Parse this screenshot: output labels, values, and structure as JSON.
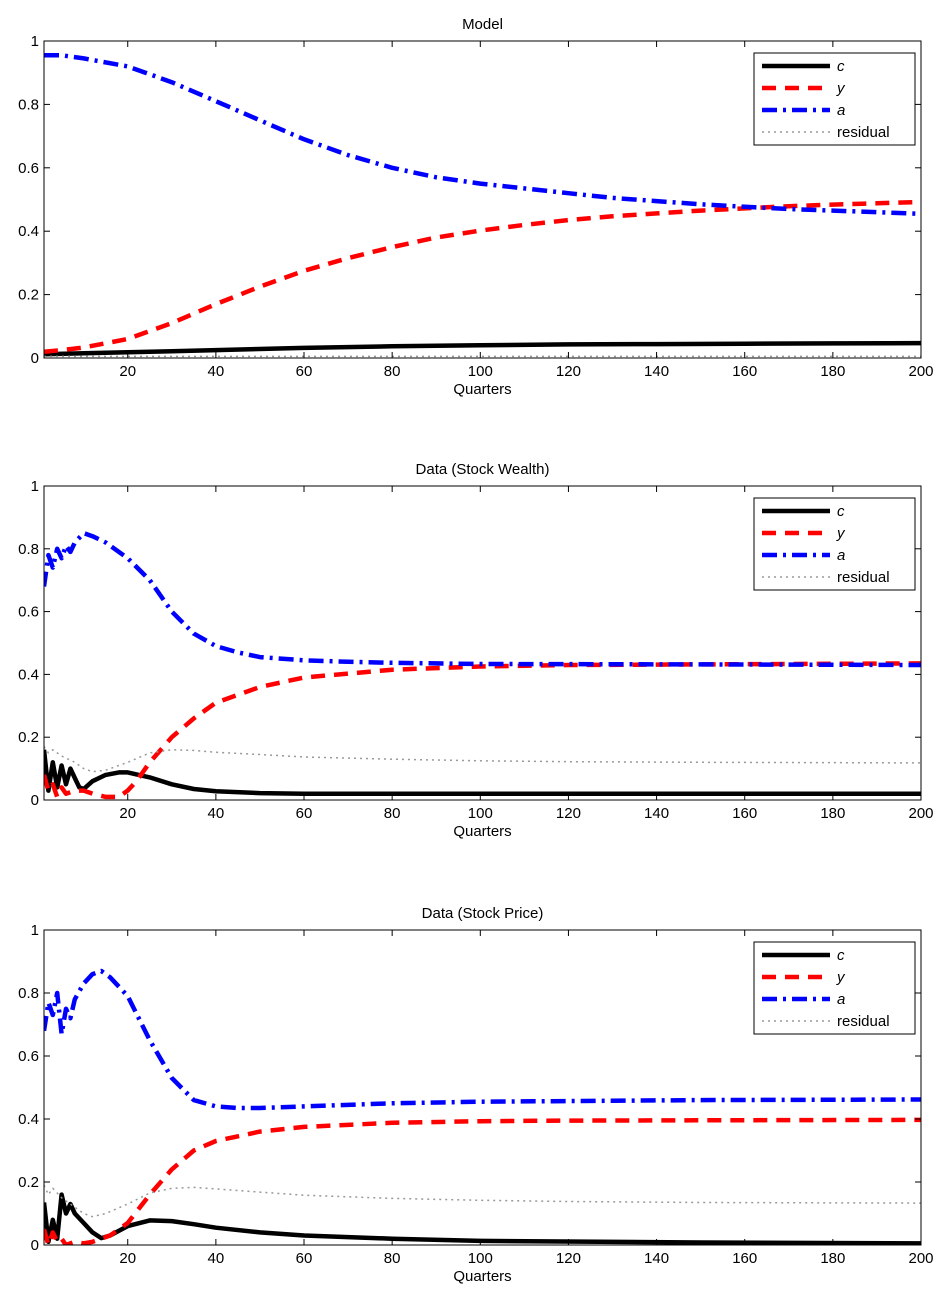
{
  "colors": {
    "c": "#000000",
    "y": "#ff0000",
    "a": "#0000ff",
    "residual": "#999999"
  },
  "chart_data": [
    {
      "type": "line",
      "title": "Model",
      "xlabel": "Quarters",
      "ylabel": "",
      "xlim": [
        1,
        200
      ],
      "ylim": [
        0,
        1
      ],
      "xticks": [
        20,
        40,
        60,
        80,
        100,
        120,
        140,
        160,
        180,
        200
      ],
      "yticks": [
        0,
        0.2,
        0.4,
        0.6,
        0.8,
        1
      ],
      "ytick_labels": [
        "0",
        "0.2",
        "0.4",
        "0.6",
        "0.8",
        "1"
      ],
      "legend": {
        "position": "top-right",
        "entries": [
          "c",
          "y",
          "a",
          "residual"
        ]
      },
      "series": [
        {
          "name": "c",
          "x": [
            1,
            10,
            20,
            30,
            40,
            60,
            80,
            100,
            120,
            140,
            160,
            180,
            200
          ],
          "values": [
            0.012,
            0.015,
            0.018,
            0.021,
            0.025,
            0.032,
            0.037,
            0.04,
            0.043,
            0.044,
            0.045,
            0.046,
            0.047
          ]
        },
        {
          "name": "y",
          "x": [
            1,
            5,
            10,
            20,
            30,
            40,
            50,
            60,
            70,
            80,
            90,
            100,
            110,
            120,
            130,
            140,
            150,
            160,
            170,
            180,
            190,
            200
          ],
          "values": [
            0.02,
            0.025,
            0.033,
            0.06,
            0.11,
            0.17,
            0.225,
            0.275,
            0.315,
            0.35,
            0.38,
            0.402,
            0.42,
            0.435,
            0.447,
            0.456,
            0.465,
            0.472,
            0.479,
            0.484,
            0.488,
            0.492
          ]
        },
        {
          "name": "a",
          "x": [
            1,
            5,
            10,
            20,
            30,
            40,
            50,
            60,
            70,
            80,
            90,
            100,
            110,
            120,
            130,
            140,
            150,
            160,
            170,
            180,
            190,
            200
          ],
          "values": [
            0.955,
            0.955,
            0.945,
            0.92,
            0.87,
            0.81,
            0.75,
            0.69,
            0.64,
            0.6,
            0.57,
            0.55,
            0.535,
            0.52,
            0.505,
            0.495,
            0.485,
            0.477,
            0.47,
            0.465,
            0.46,
            0.455
          ]
        },
        {
          "name": "residual",
          "x": [
            1,
            200
          ],
          "values": [
            0.005,
            0.005
          ]
        }
      ]
    },
    {
      "type": "line",
      "title": "Data (Stock Wealth)",
      "xlabel": "Quarters",
      "ylabel": "",
      "xlim": [
        1,
        200
      ],
      "ylim": [
        0,
        1
      ],
      "xticks": [
        20,
        40,
        60,
        80,
        100,
        120,
        140,
        160,
        180,
        200
      ],
      "yticks": [
        0,
        0.2,
        0.4,
        0.6,
        0.8,
        1
      ],
      "ytick_labels": [
        "0",
        "0.2",
        "0.4",
        "0.6",
        "0.8",
        "1"
      ],
      "legend": {
        "position": "top-right",
        "entries": [
          "c",
          "y",
          "a",
          "residual"
        ]
      },
      "series": [
        {
          "name": "c",
          "x": [
            1,
            2,
            3,
            4,
            5,
            6,
            7,
            8,
            9,
            10,
            12,
            15,
            18,
            20,
            25,
            30,
            35,
            40,
            50,
            60,
            80,
            100,
            150,
            200
          ],
          "values": [
            0.16,
            0.03,
            0.12,
            0.04,
            0.11,
            0.05,
            0.1,
            0.07,
            0.04,
            0.035,
            0.06,
            0.08,
            0.088,
            0.088,
            0.072,
            0.05,
            0.035,
            0.028,
            0.022,
            0.02,
            0.02,
            0.02,
            0.02,
            0.02
          ]
        },
        {
          "name": "y",
          "x": [
            1,
            2,
            3,
            4,
            5,
            6,
            8,
            10,
            12,
            15,
            18,
            20,
            22,
            25,
            30,
            35,
            40,
            50,
            60,
            80,
            100,
            120,
            150,
            200
          ],
          "values": [
            0.08,
            0.03,
            0.05,
            0.01,
            0.04,
            0.02,
            0.03,
            0.03,
            0.02,
            0.01,
            0.01,
            0.03,
            0.06,
            0.12,
            0.2,
            0.26,
            0.31,
            0.36,
            0.39,
            0.415,
            0.425,
            0.43,
            0.432,
            0.435
          ]
        },
        {
          "name": "a",
          "x": [
            1,
            2,
            3,
            4,
            5,
            6,
            7,
            8,
            10,
            12,
            15,
            18,
            20,
            25,
            30,
            35,
            40,
            45,
            50,
            60,
            70,
            80,
            100,
            150,
            200
          ],
          "values": [
            0.68,
            0.78,
            0.74,
            0.8,
            0.77,
            0.81,
            0.79,
            0.82,
            0.85,
            0.84,
            0.82,
            0.79,
            0.77,
            0.7,
            0.6,
            0.53,
            0.49,
            0.47,
            0.455,
            0.445,
            0.44,
            0.437,
            0.433,
            0.432,
            0.43
          ]
        },
        {
          "name": "residual",
          "x": [
            1,
            2,
            3,
            5,
            8,
            10,
            12,
            15,
            20,
            25,
            30,
            35,
            40,
            50,
            60,
            80,
            100,
            120,
            150,
            200
          ],
          "values": [
            0.17,
            0.15,
            0.16,
            0.14,
            0.12,
            0.1,
            0.09,
            0.095,
            0.12,
            0.15,
            0.16,
            0.158,
            0.152,
            0.145,
            0.137,
            0.13,
            0.125,
            0.122,
            0.12,
            0.118
          ]
        }
      ]
    },
    {
      "type": "line",
      "title": "Data (Stock Price)",
      "xlabel": "Quarters",
      "ylabel": "",
      "xlim": [
        1,
        200
      ],
      "ylim": [
        0,
        1
      ],
      "xticks": [
        20,
        40,
        60,
        80,
        100,
        120,
        140,
        160,
        180,
        200
      ],
      "yticks": [
        0,
        0.2,
        0.4,
        0.6,
        0.8,
        1
      ],
      "ytick_labels": [
        "0",
        "0.2",
        "0.4",
        "0.6",
        "0.8",
        "1"
      ],
      "legend": {
        "position": "top-right",
        "entries": [
          "c",
          "y",
          "a",
          "residual"
        ]
      },
      "series": [
        {
          "name": "c",
          "x": [
            1,
            2,
            3,
            4,
            5,
            6,
            7,
            8,
            10,
            12,
            14,
            16,
            20,
            25,
            30,
            35,
            40,
            50,
            60,
            80,
            100,
            150,
            200
          ],
          "values": [
            0.135,
            0.01,
            0.08,
            0.02,
            0.16,
            0.1,
            0.13,
            0.1,
            0.07,
            0.04,
            0.022,
            0.03,
            0.06,
            0.078,
            0.076,
            0.066,
            0.055,
            0.04,
            0.03,
            0.02,
            0.013,
            0.008,
            0.005
          ]
        },
        {
          "name": "y",
          "x": [
            1,
            2,
            3,
            4,
            5,
            6,
            8,
            10,
            12,
            14,
            16,
            20,
            25,
            30,
            35,
            40,
            50,
            60,
            80,
            100,
            120,
            150,
            200
          ],
          "values": [
            0.05,
            0.0,
            0.04,
            0.01,
            0.02,
            0.0,
            0.01,
            0.005,
            0.01,
            0.02,
            0.03,
            0.07,
            0.16,
            0.24,
            0.3,
            0.33,
            0.36,
            0.375,
            0.388,
            0.393,
            0.395,
            0.396,
            0.397
          ]
        },
        {
          "name": "a",
          "x": [
            1,
            2,
            3,
            4,
            5,
            6,
            7,
            8,
            10,
            12,
            14,
            16,
            20,
            25,
            30,
            35,
            40,
            45,
            50,
            60,
            80,
            100,
            150,
            200
          ],
          "values": [
            0.68,
            0.77,
            0.73,
            0.8,
            0.67,
            0.75,
            0.72,
            0.78,
            0.83,
            0.86,
            0.87,
            0.85,
            0.79,
            0.65,
            0.53,
            0.46,
            0.44,
            0.435,
            0.435,
            0.44,
            0.45,
            0.455,
            0.46,
            0.462
          ]
        },
        {
          "name": "residual",
          "x": [
            1,
            2,
            3,
            5,
            8,
            10,
            12,
            15,
            20,
            25,
            30,
            35,
            40,
            50,
            60,
            80,
            100,
            120,
            150,
            200
          ],
          "values": [
            0.19,
            0.16,
            0.18,
            0.15,
            0.12,
            0.1,
            0.09,
            0.1,
            0.13,
            0.165,
            0.18,
            0.183,
            0.178,
            0.168,
            0.158,
            0.148,
            0.142,
            0.138,
            0.135,
            0.133
          ]
        }
      ]
    }
  ]
}
